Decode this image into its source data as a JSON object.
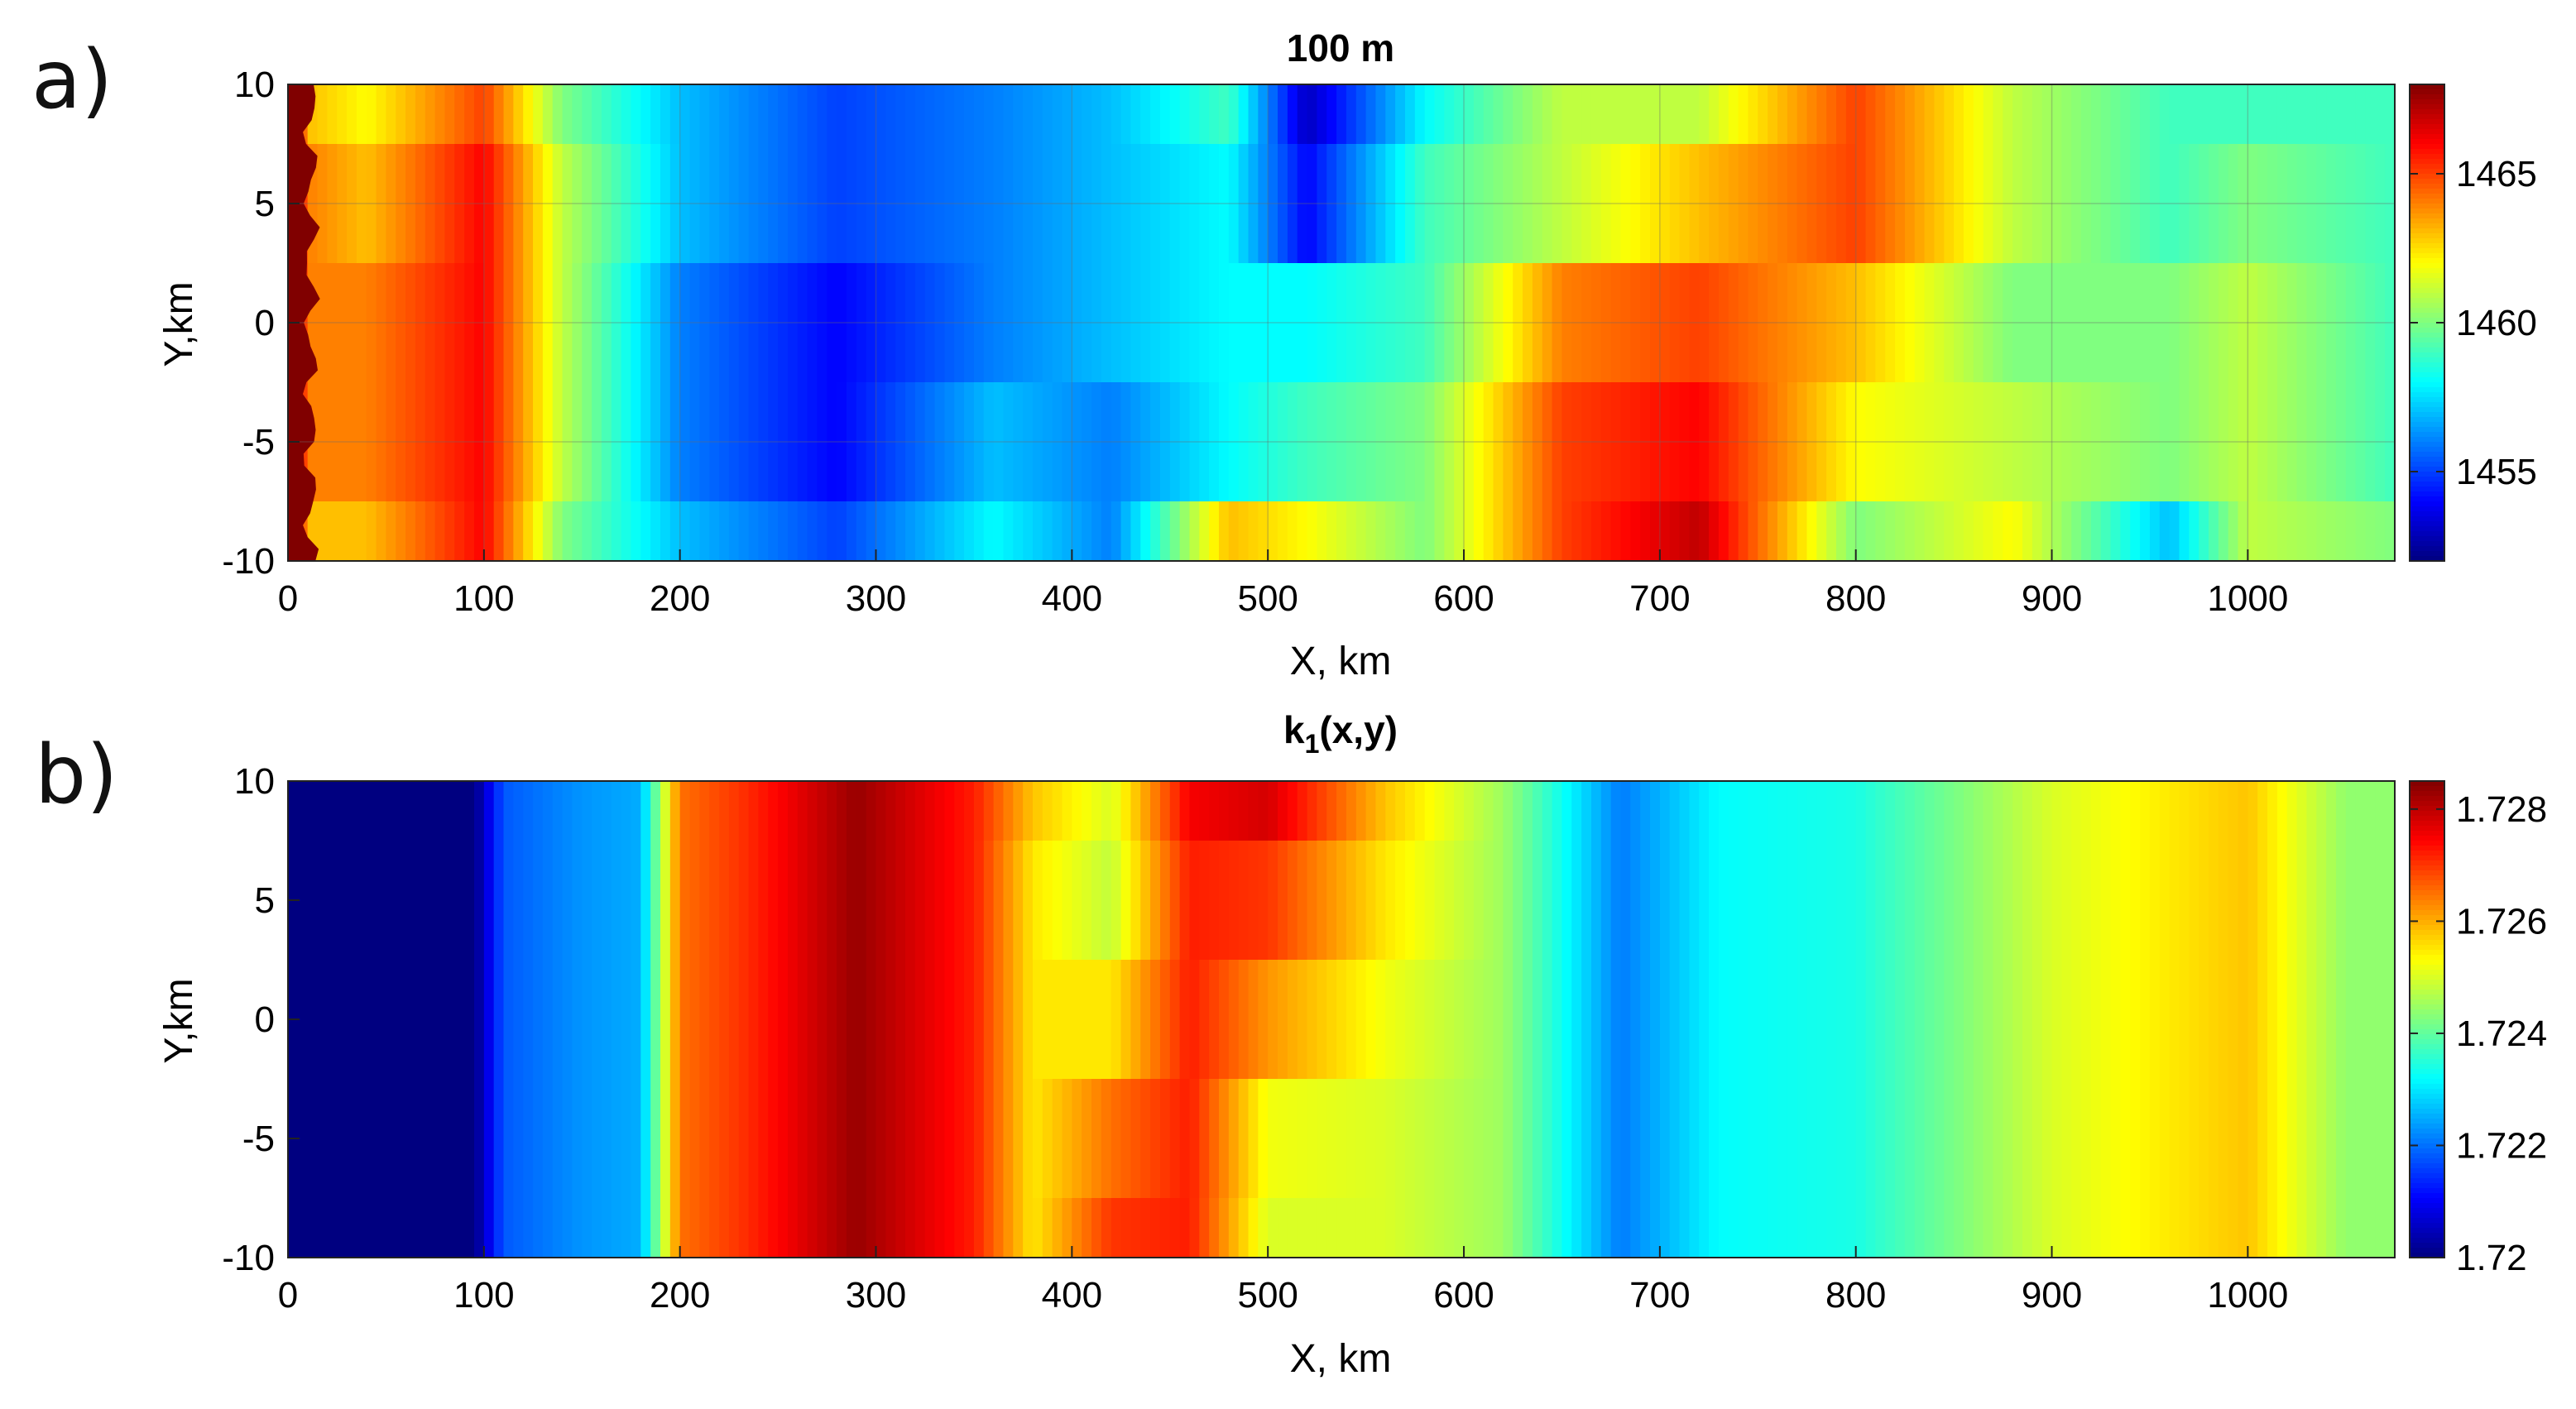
{
  "panels": [
    {
      "letter": "a)",
      "title": "100 m",
      "xlabel": "X, km",
      "ylabel": "Y,km",
      "xticks": [
        "0",
        "100",
        "200",
        "300",
        "400",
        "500",
        "600",
        "700",
        "800",
        "900",
        "1000"
      ],
      "yticks": [
        "10",
        "5",
        "0",
        "-5",
        "-10"
      ],
      "colorbar_ticks": [
        "1465",
        "1460",
        "1455"
      ]
    },
    {
      "letter": "b)",
      "title": "k",
      "title_sub": "1",
      "title_tail": "(x,y)",
      "xlabel": "X, km",
      "ylabel": "Y,km",
      "xticks": [
        "0",
        "100",
        "200",
        "300",
        "400",
        "500",
        "600",
        "700",
        "800",
        "900",
        "1000"
      ],
      "yticks": [
        "10",
        "5",
        "0",
        "-5",
        "-10"
      ],
      "colorbar_ticks": [
        "1.728",
        "1.726",
        "1.724",
        "1.722",
        "1.72"
      ]
    }
  ],
  "chart_data": [
    {
      "type": "heatmap",
      "title": "100 m",
      "xlabel": "X, km",
      "ylabel": "Y,km",
      "xlim": [
        0,
        1075
      ],
      "ylim": [
        -10,
        10
      ],
      "clim": [
        1452,
        1468
      ],
      "colormap": "jet",
      "colorbar_ticks": [
        1465,
        1460,
        1455
      ],
      "grid": true,
      "y_rows": [
        10,
        5,
        0,
        -5,
        -10
      ],
      "x_samples": [
        0,
        10,
        40,
        100,
        140,
        200,
        280,
        360,
        420,
        480,
        520,
        580,
        650,
        720,
        800,
        880,
        960,
        1000,
        1075
      ],
      "values": [
        [
          1468,
          1463,
          1462,
          1465,
          1460,
          1457,
          1455,
          1456,
          1457,
          1459,
          1453,
          1458,
          1461,
          1461,
          1465,
          1461,
          1459,
          1459,
          1459
        ],
        [
          1468,
          1464,
          1463,
          1466,
          1461,
          1457,
          1455,
          1456,
          1457,
          1458,
          1454,
          1459,
          1461,
          1463,
          1465,
          1461,
          1459,
          1460,
          1459
        ],
        [
          1468,
          1464,
          1464,
          1466,
          1461,
          1456,
          1454,
          1456,
          1457,
          1458,
          1458,
          1459,
          1464,
          1465,
          1463,
          1460,
          1460,
          1461,
          1459
        ],
        [
          1468,
          1464,
          1464,
          1466,
          1461,
          1456,
          1454,
          1457,
          1456,
          1458,
          1459,
          1460,
          1465,
          1466,
          1462,
          1461,
          1460,
          1461,
          1459
        ],
        [
          1468,
          1463,
          1463,
          1466,
          1460,
          1457,
          1455,
          1458,
          1456,
          1463,
          1462,
          1460,
          1465,
          1467,
          1460,
          1462,
          1457,
          1461,
          1460
        ]
      ]
    },
    {
      "type": "heatmap",
      "title": "k1(x,y)",
      "xlabel": "X, km",
      "ylabel": "Y,km",
      "xlim": [
        0,
        1075
      ],
      "ylim": [
        -10,
        10
      ],
      "clim": [
        1.72,
        1.7285
      ],
      "colormap": "jet",
      "colorbar_ticks": [
        1.728,
        1.726,
        1.724,
        1.722,
        1.72
      ],
      "grid": false,
      "y_rows": [
        10,
        5,
        0,
        -5,
        -10
      ],
      "x_samples": [
        0,
        95,
        110,
        150,
        180,
        200,
        230,
        290,
        350,
        380,
        420,
        460,
        500,
        560,
        620,
        680,
        730,
        800,
        900,
        1000,
        1050,
        1075
      ],
      "values": [
        [
          1.72,
          1.72,
          1.7218,
          1.7223,
          1.7225,
          1.7265,
          1.727,
          1.7283,
          1.7272,
          1.7258,
          1.725,
          1.7275,
          1.7278,
          1.7258,
          1.7245,
          1.7221,
          1.7232,
          1.7234,
          1.725,
          1.7258,
          1.7244,
          1.7244
        ],
        [
          1.72,
          1.72,
          1.7218,
          1.7223,
          1.7225,
          1.7265,
          1.727,
          1.7283,
          1.7272,
          1.7255,
          1.7248,
          1.7272,
          1.727,
          1.7255,
          1.7245,
          1.7221,
          1.7232,
          1.7234,
          1.725,
          1.7258,
          1.7244,
          1.7244
        ],
        [
          1.72,
          1.72,
          1.7218,
          1.7223,
          1.7225,
          1.7265,
          1.727,
          1.7283,
          1.7272,
          1.7255,
          1.7255,
          1.7272,
          1.7262,
          1.7252,
          1.7245,
          1.7221,
          1.7232,
          1.7234,
          1.725,
          1.7258,
          1.7244,
          1.7244
        ],
        [
          1.72,
          1.72,
          1.7218,
          1.7223,
          1.7225,
          1.7265,
          1.727,
          1.7283,
          1.7272,
          1.7255,
          1.7265,
          1.7272,
          1.7252,
          1.725,
          1.7245,
          1.7221,
          1.7232,
          1.7234,
          1.725,
          1.7258,
          1.7244,
          1.7244
        ],
        [
          1.72,
          1.72,
          1.7218,
          1.7223,
          1.7225,
          1.7265,
          1.727,
          1.7283,
          1.7272,
          1.7255,
          1.727,
          1.7272,
          1.725,
          1.725,
          1.7245,
          1.7221,
          1.7232,
          1.7234,
          1.725,
          1.7258,
          1.7244,
          1.7244
        ]
      ]
    }
  ]
}
